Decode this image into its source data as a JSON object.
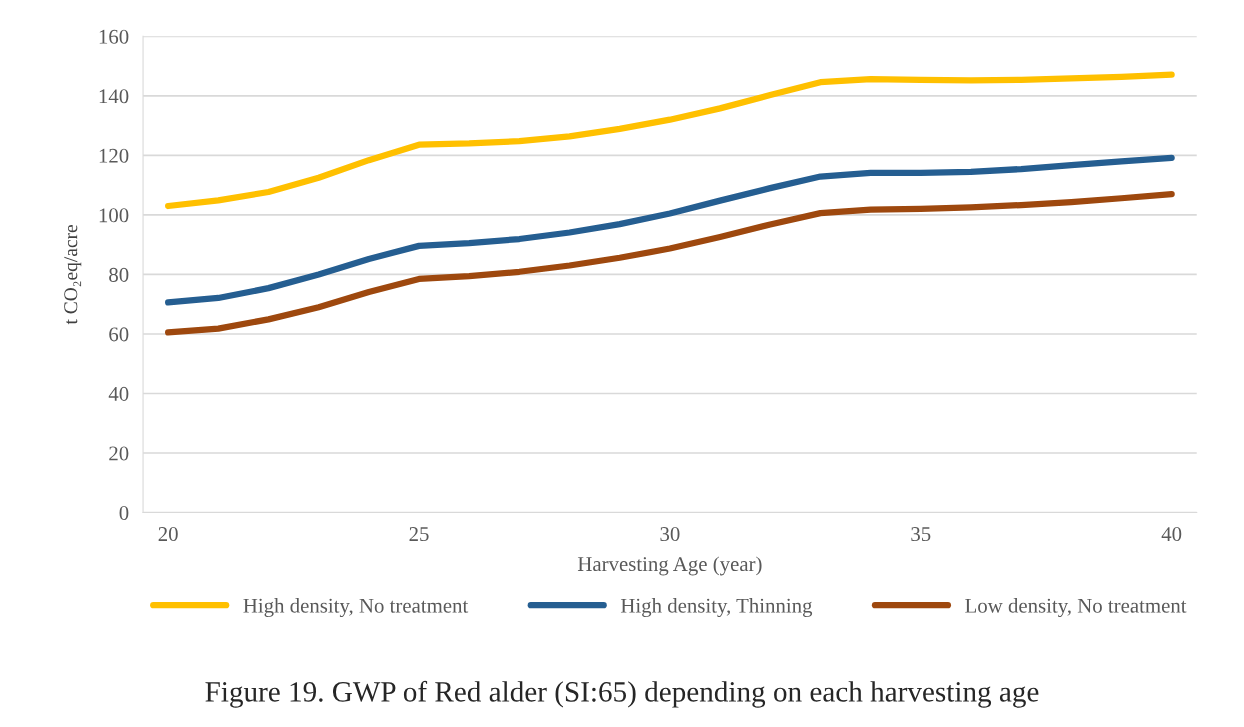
{
  "chart_data": {
    "type": "line",
    "xlabel": "Harvesting Age (year)",
    "ylabel": "t CO₂eq/acre",
    "x": [
      20,
      21,
      22,
      23,
      24,
      25,
      26,
      27,
      28,
      29,
      30,
      31,
      32,
      33,
      34,
      35,
      36,
      37,
      38,
      39,
      40
    ],
    "series": [
      {
        "name": "High density, No treatment",
        "color": "#ffc000",
        "values": [
          103.0,
          104.9,
          107.7,
          112.5,
          118.4,
          123.6,
          124.0,
          124.8,
          126.4,
          128.9,
          132.0,
          135.8,
          140.3,
          144.6,
          145.6,
          145.4,
          145.2,
          145.4,
          145.9,
          146.4,
          147.1
        ]
      },
      {
        "name": "High density, Thinning",
        "color": "#255e91",
        "values": [
          70.6,
          72.1,
          75.4,
          80.0,
          85.2,
          89.6,
          90.5,
          91.9,
          94.1,
          96.9,
          100.5,
          104.8,
          109.0,
          112.9,
          114.1,
          114.1,
          114.5,
          115.4,
          116.7,
          118.0,
          119.2
        ]
      },
      {
        "name": "Low density, No treatment",
        "color": "#9e480e",
        "values": [
          60.5,
          61.8,
          64.9,
          69.0,
          74.1,
          78.5,
          79.4,
          80.9,
          83.0,
          85.6,
          88.7,
          92.6,
          96.8,
          100.6,
          101.8,
          102.0,
          102.5,
          103.3,
          104.3,
          105.6,
          107.0
        ]
      }
    ],
    "xlim": [
      19.5,
      40.5
    ],
    "xticks": [
      20,
      25,
      30,
      35,
      40
    ],
    "ylim": [
      0,
      160
    ],
    "yticks": [
      0,
      20,
      40,
      60,
      80,
      100,
      120,
      140,
      160
    ],
    "grid": "y",
    "legend": "bottom",
    "marker": "none",
    "line_style": "solid",
    "annotations": [
      "Figure 19. GWP of Red alder (SI:65) depending on each harvesting age"
    ]
  }
}
